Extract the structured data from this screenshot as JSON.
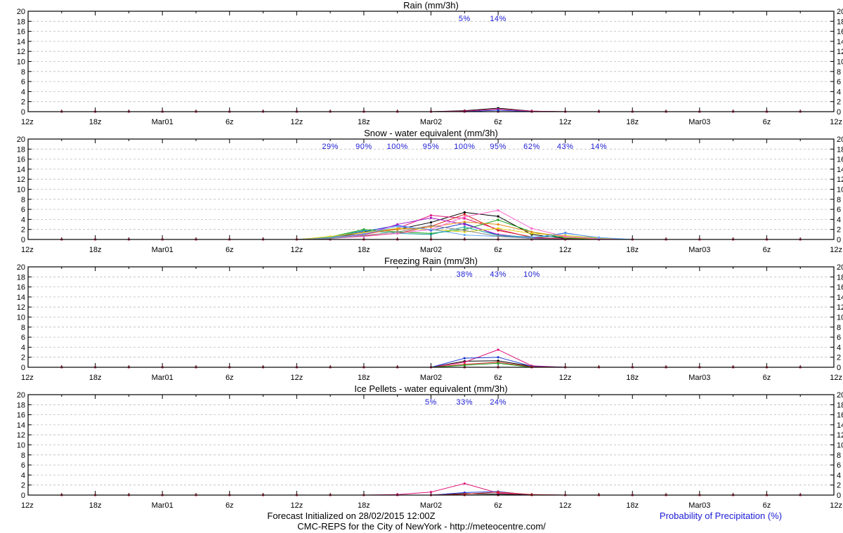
{
  "footer": {
    "line1": "Forecast Initialized on 28/02/2015 12:00Z",
    "line2": "CMC-REPS for the City of NewYork - http://meteocentre.com/",
    "legend": "Probability of Precipitation (%)"
  },
  "colors": {
    "probability_text": "#1a1ad6",
    "grid": "#bbbbbb",
    "ensemble": [
      "#000000",
      "#e0147a",
      "#1f3fd6",
      "#d62424",
      "#18a318",
      "#a416c9",
      "#1aa3a3",
      "#e3d312",
      "#e58a1a",
      "#ff66cc",
      "#66aaff",
      "#8a8a8a"
    ]
  },
  "chart_data": [
    {
      "type": "line",
      "title": "Rain (mm/3h)",
      "ylim": [
        0,
        20
      ],
      "yticks": [
        "0",
        "2",
        "4",
        "6",
        "8",
        "10",
        "12",
        "14",
        "16",
        "18",
        "20"
      ],
      "xlabels": [
        "12z",
        "18z",
        "Mar01",
        "6z",
        "12z",
        "18z",
        "Mar02",
        "6z",
        "12z",
        "18z",
        "Mar03",
        "6z",
        "12z"
      ],
      "grid": true,
      "probabilities": [
        {
          "step": 13,
          "label": "5%"
        },
        {
          "step": 14,
          "label": "14%"
        }
      ],
      "series": [
        {
          "values": [
            0,
            0,
            0,
            0,
            0,
            0,
            0,
            0,
            0,
            0,
            0,
            0,
            0,
            0.2,
            0.7,
            0.1,
            0,
            0,
            0,
            0,
            0,
            0,
            0,
            0,
            0
          ]
        },
        {
          "values": [
            0,
            0,
            0,
            0,
            0,
            0,
            0,
            0,
            0,
            0,
            0,
            0,
            0,
            0.1,
            0.5,
            0.1,
            0,
            0,
            0,
            0,
            0,
            0,
            0,
            0,
            0
          ]
        },
        {
          "values": [
            0,
            0,
            0,
            0,
            0,
            0,
            0,
            0,
            0,
            0,
            0,
            0,
            0,
            0,
            0.3,
            0,
            0,
            0,
            0,
            0,
            0,
            0,
            0,
            0,
            0
          ]
        }
      ]
    },
    {
      "type": "line",
      "title": "Snow - water equivalent (mm/3h)",
      "ylim": [
        0,
        20
      ],
      "yticks": [
        "0",
        "2",
        "4",
        "6",
        "8",
        "10",
        "12",
        "14",
        "16",
        "18",
        "20"
      ],
      "xlabels": [
        "12z",
        "18z",
        "Mar01",
        "6z",
        "12z",
        "18z",
        "Mar02",
        "6z",
        "12z",
        "18z",
        "Mar03",
        "6z",
        "12z"
      ],
      "grid": true,
      "probabilities": [
        {
          "step": 9,
          "label": "29%"
        },
        {
          "step": 10,
          "label": "90%"
        },
        {
          "step": 11,
          "label": "100%"
        },
        {
          "step": 12,
          "label": "95%"
        },
        {
          "step": 13,
          "label": "100%"
        },
        {
          "step": 14,
          "label": "95%"
        },
        {
          "step": 15,
          "label": "62%"
        },
        {
          "step": 16,
          "label": "43%"
        },
        {
          "step": 17,
          "label": "14%"
        }
      ],
      "series": [
        {
          "values": [
            0,
            0,
            0,
            0,
            0,
            0,
            0,
            0,
            0,
            0.2,
            1.5,
            2.0,
            3.4,
            5.4,
            4.6,
            1.0,
            0.2,
            0,
            0,
            0,
            0,
            0,
            0,
            0,
            0
          ]
        },
        {
          "values": [
            0,
            0,
            0,
            0,
            0,
            0,
            0,
            0,
            0,
            0.3,
            1.0,
            2.2,
            4.8,
            4.2,
            2.0,
            0.4,
            0.1,
            0,
            0,
            0,
            0,
            0,
            0,
            0,
            0
          ]
        },
        {
          "values": [
            0,
            0,
            0,
            0,
            0,
            0,
            0,
            0,
            0,
            0.4,
            1.6,
            2.8,
            1.8,
            3.2,
            0.8,
            0.3,
            1.3,
            0.3,
            0,
            0,
            0,
            0,
            0,
            0,
            0
          ]
        },
        {
          "values": [
            0,
            0,
            0,
            0,
            0,
            0,
            0,
            0,
            0,
            0.2,
            0.7,
            1.2,
            2.6,
            5.0,
            1.8,
            0.5,
            0,
            0,
            0,
            0,
            0,
            0,
            0,
            0,
            0
          ]
        },
        {
          "values": [
            0,
            0,
            0,
            0,
            0,
            0,
            0,
            0,
            0,
            0.5,
            2.0,
            1.5,
            1.2,
            2.0,
            3.9,
            1.5,
            0.3,
            0,
            0,
            0,
            0,
            0,
            0,
            0,
            0
          ]
        },
        {
          "values": [
            0,
            0,
            0,
            0,
            0,
            0,
            0,
            0,
            0,
            0.3,
            1.0,
            3.0,
            4.3,
            3.0,
            1.0,
            0.3,
            0,
            0,
            0,
            0,
            0,
            0,
            0,
            0,
            0
          ]
        },
        {
          "values": [
            0,
            0,
            0,
            0,
            0,
            0,
            0,
            0,
            0,
            0.4,
            1.8,
            1.2,
            1.0,
            2.5,
            0.8,
            0.5,
            0.6,
            0.2,
            0,
            0,
            0,
            0,
            0,
            0,
            0
          ]
        },
        {
          "values": [
            0,
            0,
            0,
            0,
            0,
            0,
            0,
            0,
            0,
            0.6,
            1.4,
            2.2,
            2.0,
            1.5,
            2.2,
            1.2,
            0.8,
            0.3,
            0,
            0,
            0,
            0,
            0,
            0,
            0
          ]
        },
        {
          "values": [
            0,
            0,
            0,
            0,
            0,
            0,
            0,
            0,
            0,
            0.3,
            1.2,
            2.0,
            2.5,
            3.5,
            3.0,
            1.5,
            0.5,
            0,
            0,
            0,
            0,
            0,
            0,
            0,
            0
          ]
        },
        {
          "values": [
            0,
            0,
            0,
            0,
            0,
            0,
            0,
            0,
            0,
            0.2,
            0.6,
            1.2,
            2.0,
            4.5,
            5.8,
            2.2,
            0.6,
            0.1,
            0,
            0,
            0,
            0,
            0,
            0,
            0
          ]
        },
        {
          "values": [
            0,
            0,
            0,
            0,
            0,
            0,
            0,
            0,
            0,
            0.3,
            1.1,
            2.6,
            2.0,
            0.9,
            0.6,
            0.4,
            1.2,
            0.4,
            0,
            0,
            0,
            0,
            0,
            0,
            0
          ]
        },
        {
          "values": [
            0,
            0,
            0,
            0,
            0,
            0,
            0,
            0,
            0,
            0.2,
            0.8,
            1.5,
            2.8,
            1.8,
            0.6,
            0.2,
            0,
            0,
            0,
            0,
            0,
            0,
            0,
            0,
            0
          ]
        }
      ]
    },
    {
      "type": "line",
      "title": "Freezing Rain (mm/3h)",
      "ylim": [
        0,
        20
      ],
      "yticks": [
        "0",
        "2",
        "4",
        "6",
        "8",
        "10",
        "12",
        "14",
        "16",
        "18",
        "20"
      ],
      "xlabels": [
        "12z",
        "18z",
        "Mar01",
        "6z",
        "12z",
        "18z",
        "Mar02",
        "6z",
        "12z",
        "18z",
        "Mar03",
        "6z",
        "12z"
      ],
      "grid": true,
      "probabilities": [
        {
          "step": 13,
          "label": "38%"
        },
        {
          "step": 14,
          "label": "43%"
        },
        {
          "step": 15,
          "label": "10%"
        }
      ],
      "series": [
        {
          "values": [
            0,
            0,
            0,
            0,
            0,
            0,
            0,
            0,
            0,
            0,
            0,
            0,
            0,
            1.2,
            1.3,
            0.2,
            0,
            0,
            0,
            0,
            0,
            0,
            0,
            0,
            0
          ]
        },
        {
          "values": [
            0,
            0,
            0,
            0,
            0,
            0,
            0,
            0,
            0,
            0,
            0,
            0,
            0,
            1.0,
            3.5,
            0.3,
            0,
            0,
            0,
            0,
            0,
            0,
            0,
            0,
            0
          ]
        },
        {
          "values": [
            0,
            0,
            0,
            0,
            0,
            0,
            0,
            0,
            0,
            0,
            0,
            0,
            0,
            1.8,
            2.0,
            0.2,
            0,
            0,
            0,
            0,
            0,
            0,
            0,
            0,
            0
          ]
        },
        {
          "values": [
            0,
            0,
            0,
            0,
            0,
            0,
            0,
            0,
            0,
            0,
            0,
            0,
            0,
            0.6,
            1.0,
            0.1,
            0,
            0,
            0,
            0,
            0,
            0,
            0,
            0,
            0
          ]
        },
        {
          "values": [
            0,
            0,
            0,
            0,
            0,
            0,
            0,
            0,
            0,
            0,
            0,
            0,
            0,
            0.4,
            0.8,
            0,
            0,
            0,
            0,
            0,
            0,
            0,
            0,
            0,
            0
          ]
        }
      ]
    },
    {
      "type": "line",
      "title": "Ice Pellets - water equivalent (mm/3h)",
      "ylim": [
        0,
        20
      ],
      "yticks": [
        "0",
        "2",
        "4",
        "6",
        "8",
        "10",
        "12",
        "14",
        "16",
        "18",
        "20"
      ],
      "xlabels": [
        "12z",
        "18z",
        "Mar01",
        "6z",
        "12z",
        "18z",
        "Mar02",
        "6z",
        "12z",
        "18z",
        "Mar03",
        "6z",
        "12z"
      ],
      "grid": true,
      "probabilities": [
        {
          "step": 12,
          "label": "5%"
        },
        {
          "step": 13,
          "label": "33%"
        },
        {
          "step": 14,
          "label": "24%"
        }
      ],
      "series": [
        {
          "values": [
            0,
            0,
            0,
            0,
            0,
            0,
            0,
            0,
            0,
            0,
            0,
            0,
            0,
            0.3,
            0.2,
            0,
            0,
            0,
            0,
            0,
            0,
            0,
            0,
            0,
            0
          ]
        },
        {
          "values": [
            0,
            0,
            0,
            0,
            0,
            0,
            0,
            0,
            0,
            0,
            0,
            0.1,
            0.6,
            2.3,
            0.4,
            0.1,
            0,
            0,
            0,
            0,
            0,
            0,
            0,
            0,
            0
          ]
        },
        {
          "values": [
            0,
            0,
            0,
            0,
            0,
            0,
            0,
            0,
            0,
            0,
            0,
            0,
            0,
            0.5,
            0.7,
            0,
            0,
            0,
            0,
            0,
            0,
            0,
            0,
            0,
            0
          ]
        },
        {
          "values": [
            0,
            0,
            0,
            0,
            0,
            0,
            0,
            0,
            0,
            0,
            0,
            0,
            0,
            0.2,
            0.6,
            0.1,
            0,
            0,
            0,
            0,
            0,
            0,
            0,
            0,
            0
          ]
        }
      ]
    }
  ]
}
